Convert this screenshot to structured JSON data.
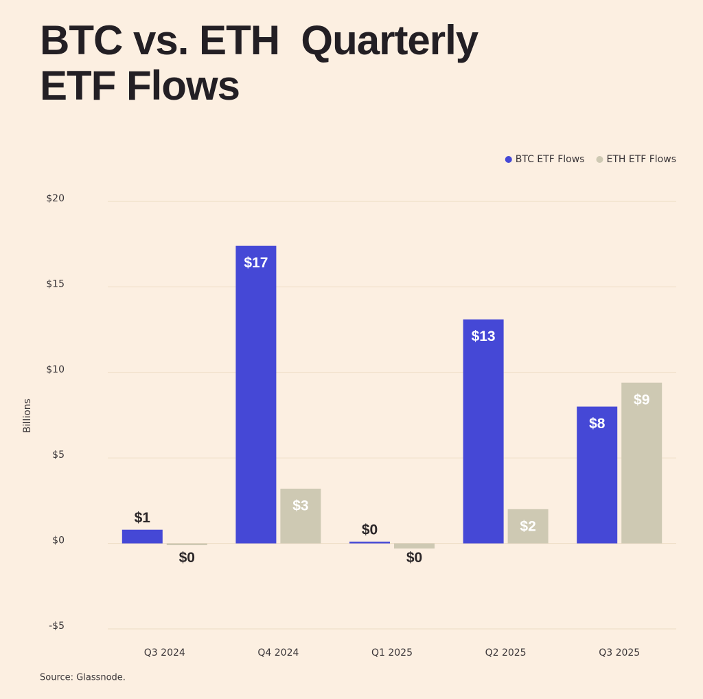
{
  "chart_data": {
    "type": "bar",
    "title": "BTC vs. ETH  Quarterly ETF Flows",
    "y_label": "Billions",
    "source": "Source: Glassnode.",
    "categories": [
      "Q3 2024",
      "Q4 2024",
      "Q1 2025",
      "Q2 2025",
      "Q3 2025"
    ],
    "series": [
      {
        "name": "BTC ETF Flows",
        "color": "#4548d6",
        "values": [
          0.8,
          17.4,
          0.1,
          13.1,
          8.0
        ],
        "value_labels": [
          "$1",
          "$17",
          "$0",
          "$13",
          "$8"
        ]
      },
      {
        "name": "ETH ETF Flows",
        "color": "#cec9b3",
        "values": [
          -0.1,
          3.2,
          -0.3,
          2.0,
          9.4
        ],
        "value_labels": [
          "$0",
          "$3",
          "$0",
          "$2",
          "$9"
        ]
      }
    ],
    "ylim": [
      -5,
      20
    ],
    "yticks": [
      {
        "value": -5,
        "label": "-$5"
      },
      {
        "value": 0,
        "label": "$0"
      },
      {
        "value": 5,
        "label": "$5"
      },
      {
        "value": 10,
        "label": "$10"
      },
      {
        "value": 15,
        "label": "$15"
      },
      {
        "value": 20,
        "label": "$20"
      }
    ],
    "grid": true,
    "legend": "top-right"
  }
}
